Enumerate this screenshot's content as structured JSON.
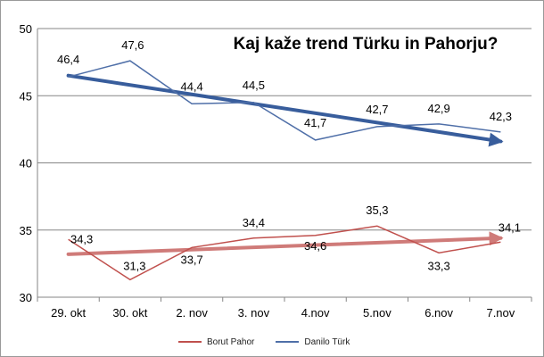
{
  "chart_data": {
    "type": "line",
    "title": "Kaj kaže trend Türku in Pahorju?",
    "categories": [
      "29. okt",
      "30. okt",
      "2. nov",
      "3. nov",
      "4.nov",
      "5.nov",
      "6.nov",
      "7.nov"
    ],
    "ylim": [
      30,
      50
    ],
    "yticks": [
      "30",
      "35",
      "40",
      "45",
      "50"
    ],
    "grid": true,
    "legend_position": "bottom",
    "series": [
      {
        "name": "Borut Pahor",
        "color": "#c0504d",
        "values": [
          34.3,
          31.3,
          33.7,
          34.4,
          34.6,
          35.3,
          33.3,
          34.1
        ],
        "labels": [
          "34,3",
          "31,3",
          "33,7",
          "34,4",
          "34,6",
          "35,3",
          "33,3",
          "34,1"
        ],
        "trend": [
          33.2,
          34.4
        ]
      },
      {
        "name": "Danilo Türk",
        "color": "#4f6fa8",
        "values": [
          46.4,
          47.6,
          44.4,
          44.5,
          41.7,
          42.7,
          42.9,
          42.3
        ],
        "labels": [
          "46,4",
          "47,6",
          "44,4",
          "44,5",
          "41,7",
          "42,7",
          "42,9",
          "42,3"
        ],
        "trend": [
          46.5,
          41.6
        ]
      }
    ],
    "trend_colors": {
      "Borut Pahor": "#c0504d",
      "Danilo Türk": "#2e5597"
    }
  }
}
